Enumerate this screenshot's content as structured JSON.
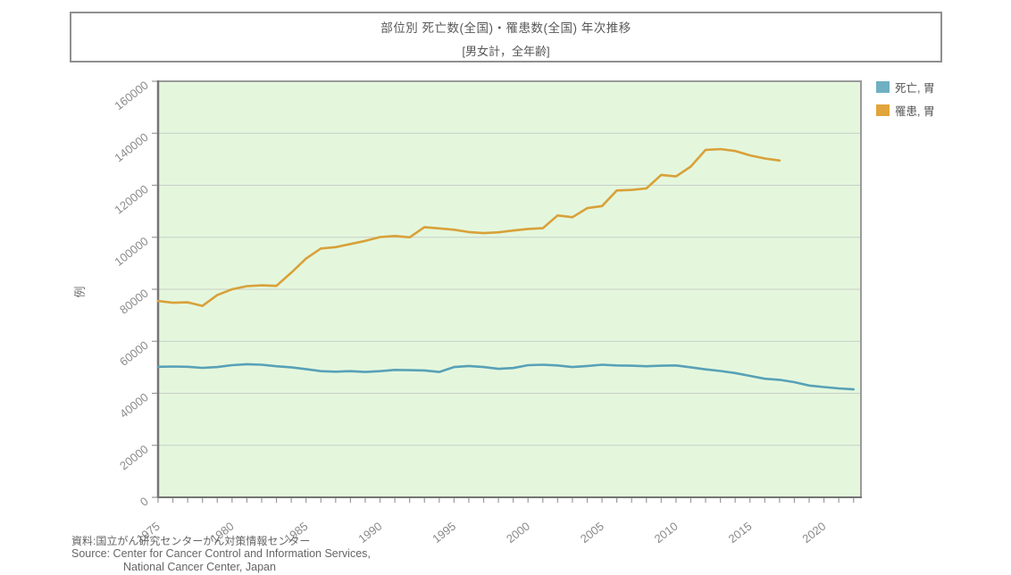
{
  "header": {
    "title": "部位別 死亡数(全国)・罹患数(全国) 年次推移",
    "subtitle": "[男女計，全年齢]"
  },
  "legend": {
    "items": [
      {
        "label": "死亡, 胃",
        "color": "#6fb0c2"
      },
      {
        "label": "罹患, 胃",
        "color": "#e1a53c"
      }
    ]
  },
  "footer": {
    "line1": "資料:国立がん研究センターがん対策情報センター",
    "line2": "Source: Center for Cancer Control and Information Services,",
    "line3": "National Cancer Center, Japan"
  },
  "chart_data": {
    "type": "line",
    "title": "部位別 死亡数(全国)・罹患数(全国) 年次推移",
    "subtitle": "[男女計，全年齢]",
    "ylabel": "例",
    "xlabel": "",
    "ylim": [
      0,
      160000
    ],
    "xlim": [
      1975,
      2022.5
    ],
    "yticks": [
      0,
      20000,
      40000,
      60000,
      80000,
      100000,
      120000,
      140000,
      160000
    ],
    "xticks": [
      1975,
      1980,
      1985,
      1990,
      1995,
      2000,
      2005,
      2010,
      2015,
      2020
    ],
    "minor_xtick_start": 1975,
    "minor_xtick_end": 2022,
    "grid": true,
    "legend_position": "top-right-outside",
    "plot_bg": "#e4f7dd",
    "grid_color": "#c7cdc7",
    "frame_color": "#9a9a9a",
    "axis_color": "#757575",
    "tick_label_color": "#8a8a8a",
    "series": [
      {
        "name": "死亡, 胃",
        "color": "#58a1b7",
        "years": [
          1975,
          1976,
          1977,
          1978,
          1979,
          1980,
          1981,
          1982,
          1983,
          1984,
          1985,
          1986,
          1987,
          1988,
          1989,
          1990,
          1991,
          1992,
          1993,
          1994,
          1995,
          1996,
          1997,
          1998,
          1999,
          2000,
          2001,
          2002,
          2003,
          2004,
          2005,
          2006,
          2007,
          2008,
          2009,
          2010,
          2011,
          2012,
          2013,
          2014,
          2015,
          2016,
          2017,
          2018,
          2019,
          2020,
          2021,
          2022
        ],
        "values": [
          50200,
          50300,
          50200,
          49800,
          50100,
          50800,
          51200,
          51000,
          50400,
          50000,
          49300,
          48500,
          48300,
          48500,
          48200,
          48500,
          49000,
          48900,
          48800,
          48200,
          50100,
          50500,
          50100,
          49400,
          49700,
          50800,
          51000,
          50700,
          50100,
          50500,
          51000,
          50700,
          50600,
          50400,
          50600,
          50700,
          50000,
          49200,
          48600,
          47800,
          46700,
          45600,
          45200,
          44300,
          43000,
          42400,
          41900,
          41500
        ]
      },
      {
        "name": "罹患, 胃",
        "color": "#d9a139",
        "years": [
          1975,
          1976,
          1977,
          1978,
          1979,
          1980,
          1981,
          1982,
          1983,
          1984,
          1985,
          1986,
          1987,
          1988,
          1989,
          1990,
          1991,
          1992,
          1993,
          1994,
          1995,
          1996,
          1997,
          1998,
          1999,
          2000,
          2001,
          2002,
          2003,
          2004,
          2005,
          2006,
          2007,
          2008,
          2009,
          2010,
          2011,
          2012,
          2013,
          2014,
          2015,
          2016,
          2017
        ],
        "values": [
          75500,
          74800,
          75000,
          73600,
          77800,
          80000,
          81200,
          81500,
          81300,
          86400,
          91800,
          95700,
          96200,
          97400,
          98600,
          100100,
          100500,
          100000,
          103900,
          103400,
          102900,
          102000,
          101600,
          101900,
          102600,
          103200,
          103500,
          108400,
          107700,
          111200,
          112000,
          118000,
          118200,
          118800,
          124000,
          123400,
          127200,
          133600,
          133900,
          133200,
          131500,
          130300,
          129500
        ]
      }
    ]
  }
}
